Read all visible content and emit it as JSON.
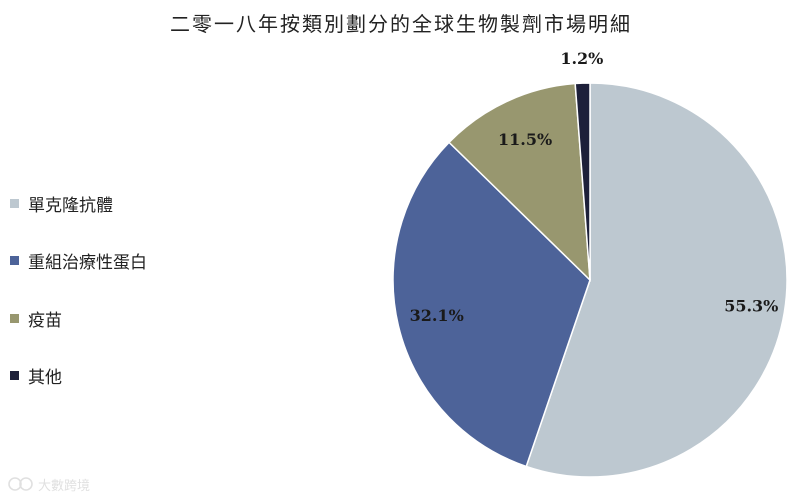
{
  "chart_data": {
    "type": "pie",
    "title": "二零一八年按類別劃分的全球生物製劑市場明細",
    "categories": [
      "單克隆抗體",
      "重組治療性蛋白",
      "疫苗",
      "其他"
    ],
    "values": [
      55.3,
      32.1,
      11.5,
      1.2
    ],
    "labels": [
      "55.3%",
      "32.1%",
      "11.5%",
      "1.2%"
    ],
    "colors": [
      "#bdc8d0",
      "#4d6399",
      "#98976f",
      "#1d203a"
    ],
    "legend_position": "left"
  },
  "watermark": {
    "text": "大數跨境"
  }
}
